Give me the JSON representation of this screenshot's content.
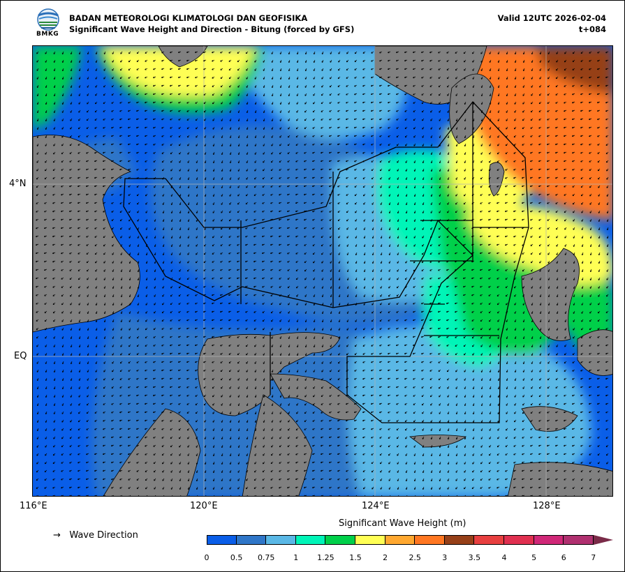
{
  "header": {
    "agency": "BADAN METEOROLOGI KLIMATOLOGI DAN GEOFISIKA",
    "subtitle": "Significant Wave Height and Direction - Bitung (forced by GFS)",
    "valid": "Valid 12UTC 2026-02-04",
    "lead": "t+084",
    "logo_text": "BMKG"
  },
  "axes": {
    "x_ticks": [
      "116°E",
      "120°E",
      "124°E",
      "128°E"
    ],
    "y_ticks": [
      "4°N",
      "EQ"
    ]
  },
  "legend": {
    "arrow_glyph": "→",
    "arrow_label": "Wave Direction",
    "colorbar_title": "Significant Wave Height (m)",
    "colorbar_labels": [
      "0",
      "0.5",
      "0.75",
      "1",
      "1.25",
      "1.5",
      "2",
      "2.5",
      "3",
      "3.5",
      "4",
      "5",
      "6",
      "7"
    ],
    "colors": [
      "#0a5ee8",
      "#2f76c8",
      "#5ab8e6",
      "#00f5b8",
      "#00d04a",
      "#ffff55",
      "#ffa830",
      "#ff7722",
      "#964018",
      "#e84040",
      "#e03050",
      "#d02878",
      "#b03070"
    ],
    "extend_color": "#7a2b48"
  },
  "map": {
    "land_color": "#808080",
    "grid_color": "#b0b0b0"
  }
}
